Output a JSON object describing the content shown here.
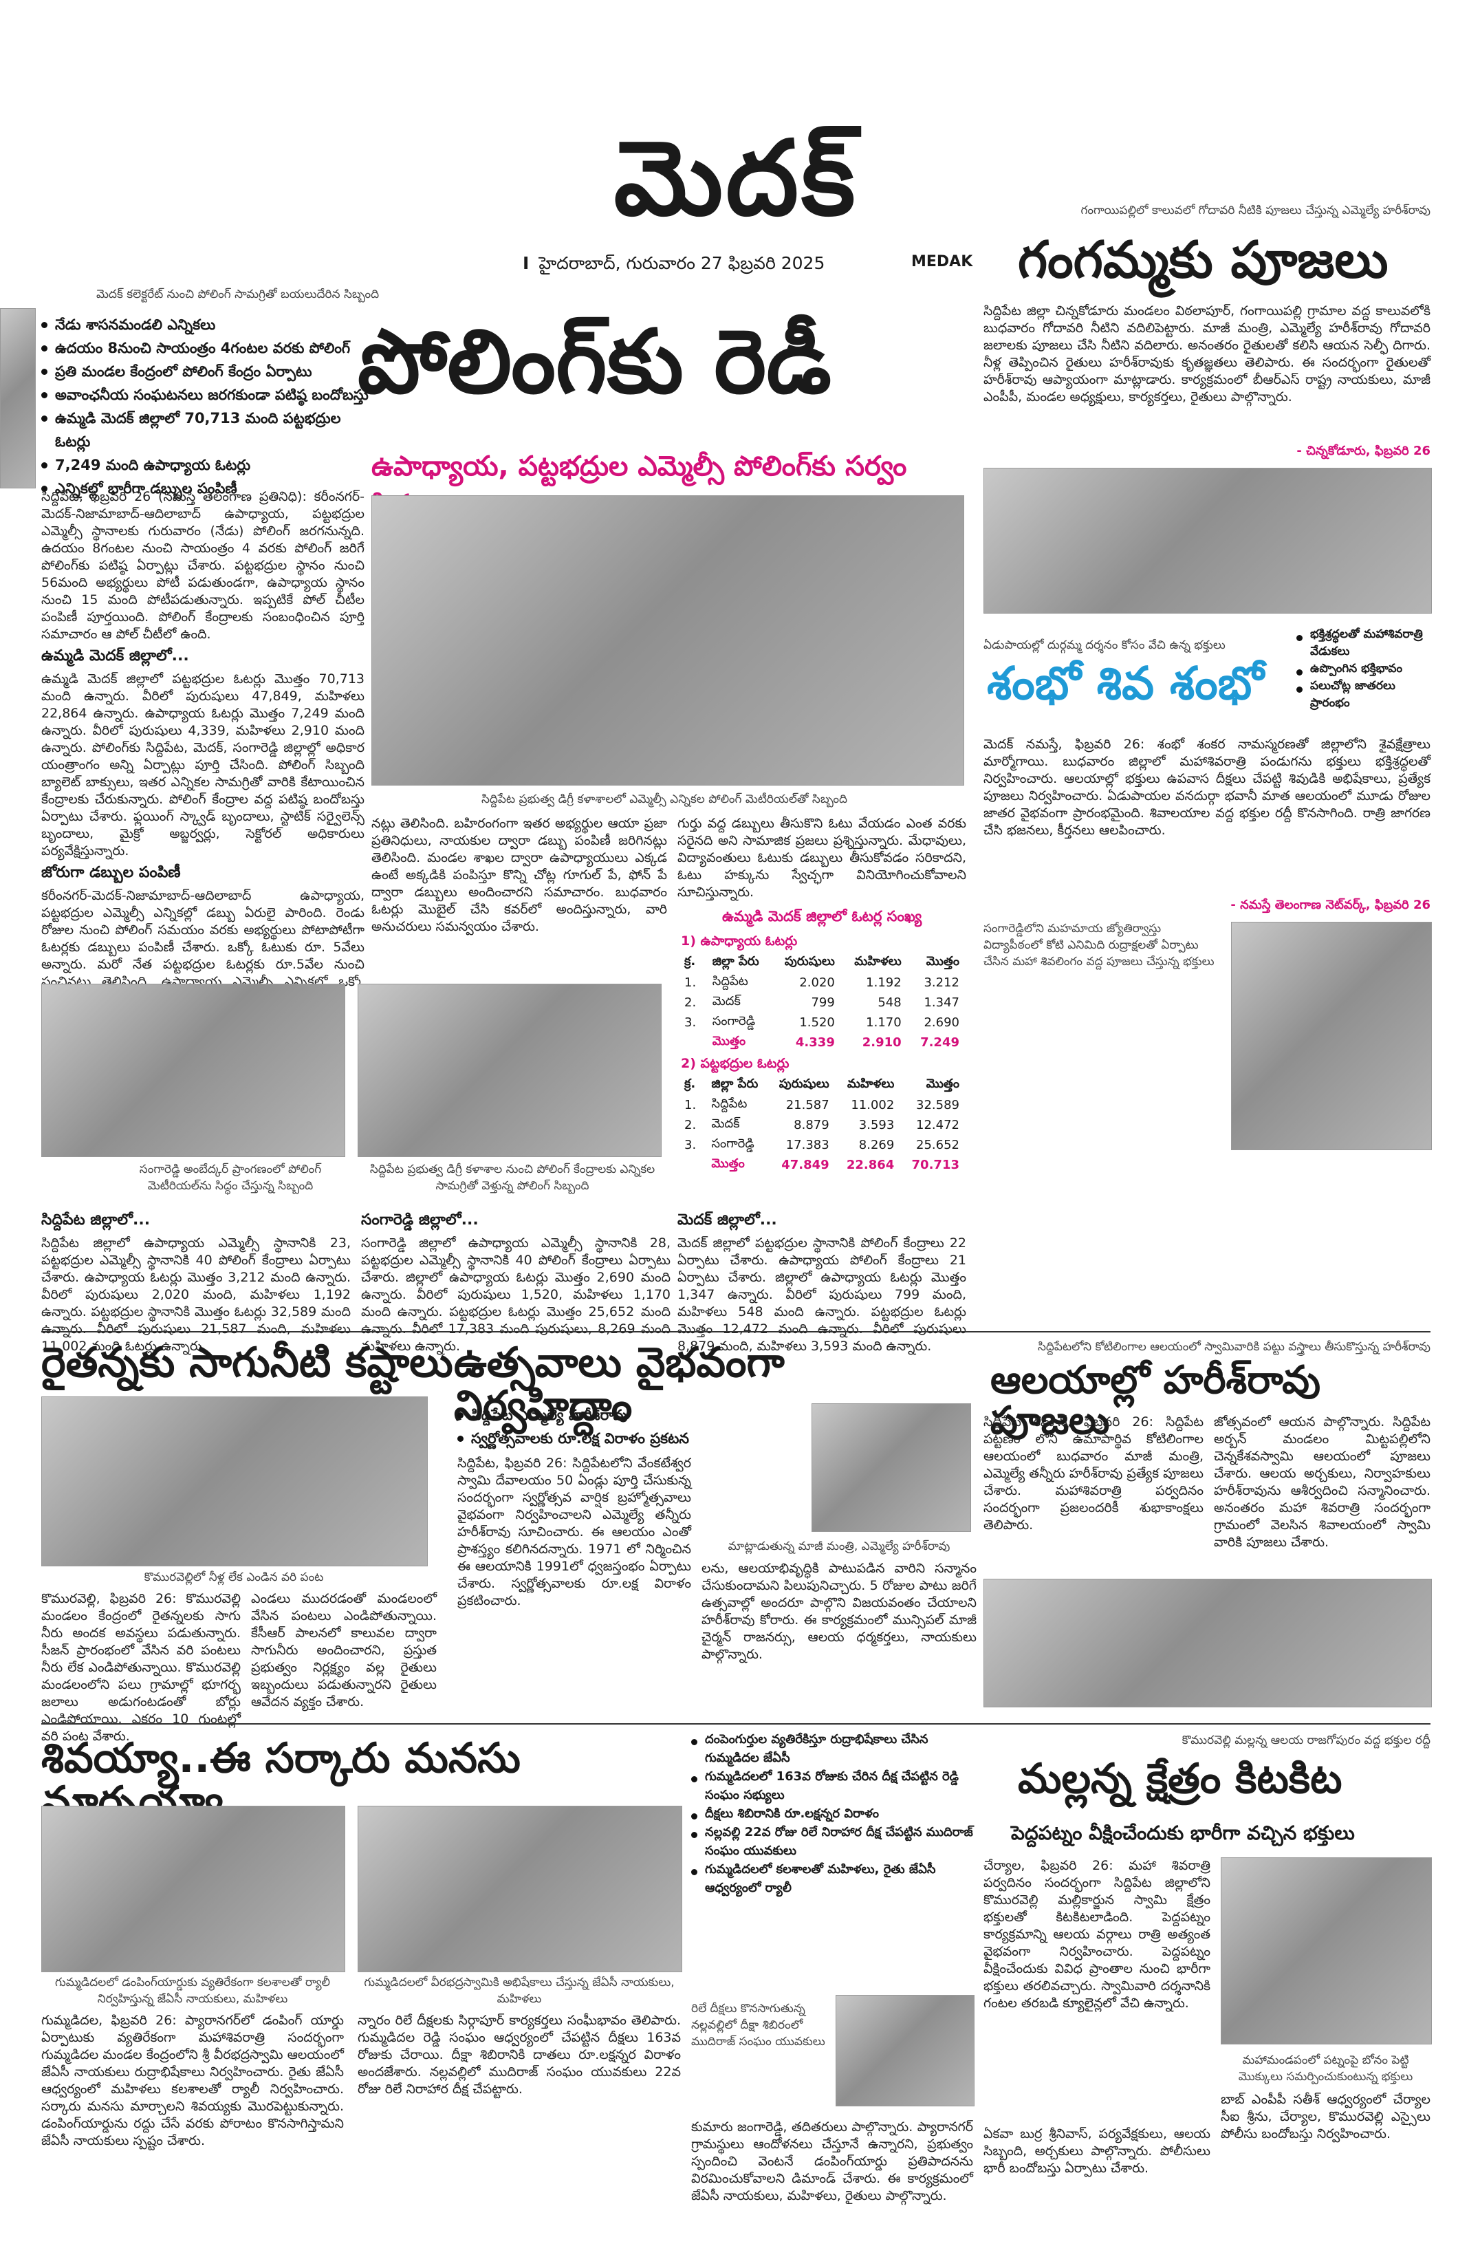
{
  "masthead": {
    "title": "మెదక్",
    "separator": "I",
    "dateline": "హైదరాబాద్, గురువారం 27 ఫిబ్రవరి 2025",
    "edition": "MEDAK"
  },
  "polling": {
    "photo_caption": "మెదక్ కలెక్టరేట్ నుంచి పోలింగ్ సామగ్రితో బయలుదేరిన సిబ్బంది",
    "bullets": [
      "నేడు శాసనమండలి ఎన్నికలు",
      "ఉదయం 8నుంచి సాయంత్రం 4గంటల వరకు పోలింగ్",
      "ప్రతి మండల కేంద్రంలో పోలింగ్ కేంద్రం ఏర్పాటు",
      "అవాంఛనీయ సంఘటనలు జరగకుండా పటిష్ఠ బందోబస్తు",
      "ఉమ్మడి మెదక్ జిల్లాలో 70,713 మంది పట్టభద్రుల ఓటర్లు",
      "7,249 మంది ఉపాధ్యాయ ఓటర్లు",
      "ఎన్నికల్లో భారీగా డబ్బుల పంపిణీ"
    ],
    "headline": "పోలింగ్‌కు రెడీ",
    "subhead": "ఉపాధ్యాయ, పట్టభద్రుల ఎమ్మెల్సీ పోలింగ్‌కు సర్వం సిద్ధం",
    "intro": "సిద్దిపేట, ఫిబ్రవరి 26 (నమస్తే తెలంగాణ ప్రతినిధి): కరీంనగర్-మెదక్-నిజామాబాద్-ఆదిలాబాద్ ఉపాధ్యాయ, పట్టభద్రుల ఎమ్మెల్సీ స్థానాలకు గురువారం (నేడు) పోలింగ్ జరగనున్నది. ఉదయం 8గంటల నుంచి సాయంత్రం 4 వరకు పోలింగ్ జరిగే పోలింగ్‌కు పటిష్ఠ ఏర్పాట్లు చేశారు. పట్టభద్రుల స్థానం నుంచి 56మంది అభ్యర్థులు పోటీ పడుతుండగా, ఉపాధ్యాయ స్థానం నుంచి 15 మంది పోటీపడుతున్నారు. ఇప్పటికే పోల్ చీటీల పంపిణీ పూర్తయింది. పోలింగ్ కేంద్రాలకు సంబంధించిన పూర్తి సమాచారం ఆ పోల్ చీటీలో ఉంది.",
    "section1_title": "ఉమ్మడి మెదక్ జిల్లాలో...",
    "section1_body": "ఉమ్మడి మెదక్ జిల్లాలో పట్టభద్రుల ఓటర్లు మొత్తం 70,713 మంది ఉన్నారు. వీరిలో పురుషులు 47,849, మహిళలు 22,864 ఉన్నారు. ఉపాధ్యాయ ఓటర్లు మొత్తం 7,249 మంది ఉన్నారు. వీరిలో పురుషులు 4,339, మహిళలు 2,910 మంది ఉన్నారు. పోలింగ్‌కు సిద్దిపేట, మెదక్, సంగారెడ్డి జిల్లాల్లో అధికార యంత్రాంగం అన్ని ఏర్పాట్లు పూర్తి చేసింది. పోలింగ్ సిబ్బంది బ్యాలెట్ బాక్సులు, ఇతర ఎన్నికల సామగ్రితో వారికి కేటాయించిన కేంద్రాలకు చేరుకున్నారు. పోలింగ్ కేంద్రాల వద్ద పటిష్ఠ బందోబస్తు ఏర్పాటు చేశారు. ఫ్లయింగ్ స్క్వాడ్ బృందాలు, స్టాటిక్ సర్వైలెన్స్ బృందాలు, మైక్రో అబ్జర్వర్లు, సెక్టోరల్ అధికారులు పర్యవేక్షిస్తున్నారు.",
    "section2_title": "జోరుగా డబ్బుల పంపిణీ",
    "section2_body": "కరీంనగర్-మెదక్-నిజామాబాద్-ఆదిలాబాద్ ఉపాధ్యాయ, పట్టభద్రుల ఎమ్మెల్సీ ఎన్నికల్లో డబ్బు ఏరులై పారింది. రెండు రోజుల నుంచి పోలింగ్ సమయం వరకు అభ్యర్థులు పోటాపోటీగా ఓటర్లకు డబ్బులు పంపిణీ చేశారు. ఒక్కో ఓటుకు రూ. 5వేలు అన్నారు. మరో నేత పట్టభద్రుల ఓటర్లకు రూ.5వేల నుంచి పంచినట్లు తెలిసింది. ఉపాధ్యాయ ఎమ్మెల్సీ ఎన్నికల్లో ఒక్కో ఓటుకు 8వేల వరకు పంపిణీ చేసినట్లు సమాచారం.",
    "center_caption": "సిద్దిపేట ప్రభుత్వ డిగ్రీ కళాశాలలో ఎమ్మెల్సీ ఎన్నికల పోలింగ్ మెటీరియల్‌తో సిబ్బంది",
    "center_body": "నట్లు తెలిసింది. బహిరంగంగా ఇతర అభ్యర్థుల ఆయా ప్రజా ప్రతినిధులు, నాయకుల ద్వారా డబ్బు పంపిణీ జరిగినట్లు తెలిసింది. మండల శాఖల ద్వారా ఉపాధ్యాయులు ఎక్కడ ఉంటే అక్కడికి పంపిస్తూ కొన్ని చోట్ల గూగుల్ పే, ఫోన్ పే ద్వారా డబ్బులు అందించారని సమాచారం. బుధవారం ఓటర్లు మొబైల్ చేసి కవర్‌లో అందిస్తున్నారు, వారి అనుచరులు సమన్వయం చేశారు.",
    "right_body": "గుర్తు వద్ద డబ్బులు తీసుకొని ఓటు వేయడం ఎంత వరకు సరైనది అని సామాజిక ప్రజలు ప్రశ్నిస్తున్నారు. మేధావులు, విద్యావంతులు ఓటుకు డబ్బులు తీసుకోవడం సరికాదని, ఓటు హక్కును స్వేచ్ఛగా వినియోగించుకోవాలని సూచిస్తున్నారు.",
    "table_title": "ఉమ్మడి మెదక్ జిల్లాలో ఓటర్ల సంఖ్య",
    "table1_title": "1) ఉపాధ్యాయ ఓటర్లు",
    "table2_title": "2) పట్టభద్రుల ఓటర్లు",
    "table_header": [
      "క్ర.",
      "జిల్లా పేరు",
      "పురుషులు",
      "మహిళలు",
      "మొత్తం"
    ],
    "table1_rows": [
      [
        "1.",
        "సిద్దిపేట",
        "2.020",
        "1.192",
        "3.212"
      ],
      [
        "2.",
        "మెదక్",
        "799",
        "548",
        "1.347"
      ],
      [
        "3.",
        "సంగారెడ్డి",
        "1.520",
        "1.170",
        "2.690"
      ]
    ],
    "table1_total": [
      "",
      "మొత్తం",
      "4.339",
      "2.910",
      "7.249"
    ],
    "table2_rows": [
      [
        "1.",
        "సిద్దిపేట",
        "21.587",
        "11.002",
        "32.589"
      ],
      [
        "2.",
        "మెదక్",
        "8.879",
        "3.593",
        "12.472"
      ],
      [
        "3.",
        "సంగారెడ్డి",
        "17.383",
        "8.269",
        "25.652"
      ]
    ],
    "table2_total": [
      "",
      "మొత్తం",
      "47.849",
      "22.864",
      "70.713"
    ],
    "photo2_caption": "సంగారెడ్డి అంబేద్కర్ ప్రాంగణంలో పోలింగ్ మెటీరియల్‌ను సిద్ధం చేస్తున్న సిబ్బంది",
    "photo3_caption": "సిద్దిపేట ప్రభుత్వ డిగ్రీ కళాశాల నుంచి పోలింగ్ కేంద్రాలకు ఎన్నికల సామగ్రితో వెళ్తున్న పోలింగ్ సిబ్బంది",
    "col_a_title": "సిద్దిపేట జిల్లాలో...",
    "col_a_body": "సిద్దిపేట జిల్లాలో ఉపాధ్యాయ ఎమ్మెల్సీ స్థానానికి 23, పట్టభద్రుల ఎమ్మెల్సీ స్థానానికి 40 పోలింగ్ కేంద్రాలు ఏర్పాటు చేశారు. ఉపాధ్యాయ ఓటర్లు మొత్తం 3,212 మంది ఉన్నారు. వీరిలో పురుషులు 2,020 మంది, మహిళలు 1,192 ఉన్నారు. పట్టభద్రుల స్థానానికి మొత్తం ఓటర్లు 32,589 మంది ఉన్నారు. వీరిలో పురుషులు 21,587 మంది, మహిళలు 11,002 మంది ఓటర్లు ఉన్నారు.",
    "col_b_title": "సంగారెడ్డి జిల్లాలో...",
    "col_b_body": "సంగారెడ్డి జిల్లాలో ఉపాధ్యాయ ఎమ్మెల్సీ స్థానానికి 28, పట్టభద్రుల ఎమ్మెల్సీ స్థానానికి 40 పోలింగ్ కేంద్రాలు ఏర్పాటు చేశారు. జిల్లాలో ఉపాధ్యాయ ఓటర్లు మొత్తం 2,690 మంది ఉన్నారు. వీరిలో పురుషులు 1,520, మహిళలు 1,170 మంది ఉన్నారు. పట్టభద్రుల ఓటర్లు మొత్తం 25,652 మంది ఉన్నారు. వీరిలో 17,383 మంది పురుషులు, 8,269 మంది మహిళలు ఉన్నారు.",
    "col_c_title": "మెదక్ జిల్లాలో...",
    "col_c_body": "మెదక్ జిల్లాలో పట్టభద్రుల స్థానానికి పోలింగ్ కేంద్రాలు 22 ఏర్పాటు చేశారు. ఉపాధ్యాయ పోలింగ్ కేంద్రాలు 21 ఏర్పాటు చేశారు. జిల్లాలో ఉపాధ్యాయ ఓటర్లు మొత్తం 1,347 ఉన్నారు. వీరిలో పురుషులు 799 మంది, మహిళలు 548 మంది ఉన్నారు. పట్టభద్రుల ఓటర్లు మొత్తం 12,472 మంది ఉన్నారు. వీరిలో పురుషులు 8,879 మంది, మహిళలు 3,593 మంది ఉన్నారు."
  },
  "gangamma": {
    "caption": "గంగాయిపల్లిలో కాలువలో గోదావరి నీటికి పూజలు చేస్తున్న ఎమ్మెల్యే హరీశ్‌రావు",
    "headline": "గంగమ్మకు పూజలు",
    "body": "సిద్దిపేట జిల్లా చిన్నకోడూరు మండలం విఠలాపూర్, గంగాయిపల్లి గ్రామాల వద్ద కాలువలోకి బుధవారం గోదావరి నీటిని వదిలిపెట్టారు. మాజీ మంత్రి, ఎమ్మెల్యే హరీశ్‌రావు గోదావరి జలాలకు పూజలు చేసి నీటిని వదిలారు. అనంతరం రైతులతో కలిసి ఆయన సెల్ఫీ దిగారు. నీళ్ల తెప్పించిన రైతులు హరీశ్‌రావుకు కృతజ్ఞతలు తెలిపారు. ఈ సందర్భంగా రైతులతో హరీశ్‌రావు ఆప్యాయంగా మాట్లాడారు. కార్యక్రమంలో బీఆర్ఎస్ రాష్ట్ర నాయకులు, మాజీ ఎంపీపీ, మండల అధ్యక్షులు, కార్యకర్తలు, రైతులు పాల్గొన్నారు.",
    "credit": "- చిన్నకోడూరు, ఫిబ్రవరి 26"
  },
  "shambho": {
    "caption": "ఏడుపాయల్లో దుర్గమ్మ దర్శనం కోసం వేచి ఉన్న భక్తులు",
    "headline": "శంభో శివ శంభో",
    "bullets": [
      "భక్తిశ్రద్ధలతో మహాశివరాత్రి వేడుకలు",
      "ఉప్పొంగిన భక్తిభావం",
      "పలుచోట్ల జాతరలు ప్రారంభం"
    ],
    "body": "మెదక్ నమస్తే, ఫిబ్రవరి 26: శంభో శంకర నామస్మరణతో జిల్లాలోని శైవక్షేత్రాలు మార్మోగాయి. బుధవారం జిల్లాలో మహాశివరాత్రి పండుగను భక్తులు భక్తిశ్రద్ధలతో నిర్వహించారు. ఆలయాల్లో భక్తులు ఉపవాస దీక్షలు చేపట్టి శివుడికి అభిషేకాలు, ప్రత్యేక పూజలు నిర్వహించారు. ఏడుపాయల వనదుర్గా భవానీ మాత ఆలయంలో మూడు రోజుల జాతర వైభవంగా ప్రారంభమైంది. శివాలయాల వద్ద భక్తుల రద్దీ కొనసాగింది. రాత్రి జాగరణ చేసి భజనలు, కీర్తనలు ఆలపించారు.",
    "credit": "- నమస్తే తెలంగాణ నెట్‌వర్క్, ఫిబ్రవరి 26",
    "photo2_caption": "సంగారెడ్డిలోని మహమాయ జ్యోతిర్వాస్తు విద్యాపీఠంలో కోటి ఎనిమిది రుద్రాక్షలతో ఏర్పాటు చేసిన మహా శివలింగం వద్ద పూజలు చేస్తున్న భక్తులు"
  },
  "raitanna": {
    "headline": "రైతన్నకు సాగునీటి కష్టాలు",
    "caption": "కొమురవెల్లిలో నీళ్ల లేక ఎండిన వరి పంట",
    "body1": "కొమురవెల్లి, ఫిబ్రవరి 26: కొమురవెల్లి మండలం కేంద్రంలో రైతన్నలకు సాగు నీరు అందక అవస్థలు పడుతున్నారు. సీజన్ ప్రారంభంలో వేసిన వరి పంటలు నీరు లేక ఎండిపోతున్నాయి. కొమురవెల్లి మండలంలోని పలు గ్రామాల్లో భూగర్భ జలాలు అడుగంటడంతో బోర్లు ఎండిపోయాయి. ఎకరం 10 గుంటల్లో వరి పంట వేశారు.",
    "body2": "ఎండలు ముదరడంతో మండలంలో వేసిన పంటలు ఎండిపోతున్నాయి. కేసీఆర్ పాలనలో కాలువల ద్వారా సాగునీరు అందించారని, ప్రస్తుత ప్రభుత్వం నిర్లక్ష్యం వల్ల రైతులు ఇబ్బందులు పడుతున్నారని రైతులు ఆవేదన వ్యక్తం చేశారు."
  },
  "utsavalu": {
    "headline": "ఉత్సవాలు వైభవంగా నిర్వహిద్దాం",
    "bullets": [
      "సిద్దిపేట ఎమ్మెల్యే హరీశ్‌రావు",
      "స్వర్ణోత్సవాలకు రూ.లక్ష విరాళం ప్రకటన"
    ],
    "body": "సిద్దిపేట, ఫిబ్రవరి 26: సిద్దిపేటలోని వేంకటేశ్వర స్వామి దేవాలయం 50 ఏండ్లు పూర్తి చేసుకున్న సందర్భంగా స్వర్ణోత్సవ వార్షిక బ్రహ్మోత్సవాలు వైభవంగా నిర్వహించాలని ఎమ్మెల్యే తన్నీరు హరీశ్‌రావు సూచించారు. ఈ ఆలయం ఎంతో ప్రాశస్త్యం కలిగినదన్నారు. 1971 లో నిర్మించిన ఈ ఆలయానికి 1991లో ధ్వజస్తంభం ఏర్పాటు చేశారు. స్వర్ణోత్సవాలకు రూ.లక్ష విరాళం ప్రకటించారు.",
    "caption": "మాట్లాడుతున్న మాజీ మంత్రి, ఎమ్మెల్యే హరీశ్‌రావు",
    "body2": "లను, ఆలయాభివృద్ధికి పాటుపడిన వారిని సన్మానం చేసుకుందామని పిలుపునిచ్చారు. 5 రోజుల పాటు జరిగే ఉత్సవాల్లో అందరూ పాల్గొని విజయవంతం చేయాలని హరీశ్‌రావు కోరారు. ఈ కార్యక్రమంలో మున్సిపల్ మాజీ చైర్మన్ రాజనర్సు, ఆలయ ధర్మకర్తలు, నాయకులు పాల్గొన్నారు."
  },
  "alayalu": {
    "caption": "సిద్దిపేటలోని కోటిలింగాల ఆలయంలో స్వామివారికి పట్టు వస్త్రాలు తీసుకొస్తున్న హరీశ్‌రావు",
    "headline": "ఆలయాల్లో హరీశ్‌రావు పూజలు",
    "body1": "సిద్దిపేట కమాన్, ఫిబ్రవరి 26: సిద్దిపేట పట్టణం లోని ఉమాపార్థివ కోటిలింగాల ఆలయంలో బుధవారం మాజీ మంత్రి, ఎమ్మెల్యే తన్నీరు హరీశ్‌రావు ప్రత్యేక పూజలు చేశారు. మహాశివరాత్రి పర్వదినం సందర్భంగా ప్రజలందరికీ శుభాకాంక్షలు తెలిపారు.",
    "body2": "జోత్సవంలో ఆయన పాల్గొన్నారు. సిద్దిపేట అర్బన్ మండలం మిట్టపల్లిలోని చెన్నకేశవస్వామి ఆలయంలో పూజలు చేశారు. ఆలయ అర్చకులు, నిర్వాహకులు హరీశ్‌రావును ఆశీర్వదించి సన్మానించారు. అనంతరం మహా శివరాత్రి సందర్భంగా గ్రామంలో వెలసిన శివాలయంలో స్వామి వారికి పూజలు చేశారు."
  },
  "shivayya": {
    "headline": "శివయ్యా..ఈ సర్కారు మనసు మార్చయ్యా",
    "bullets": [
      "దంపెంగుర్తుల వ్యతిరేకిస్తూ రుద్రాభిషేకాలు చేసిన గుమ్మడిదల జేఏసీ",
      "గుమ్మడిదలలో 163వ రోజుకు చేరిన దీక్ష చేపట్టిన రెడ్డి సంఘం సభ్యులు",
      "దీక్షలు శిబిరానికి రూ.లక్షన్నర విరాళం",
      "నల్లవల్లి 22వ రోజు రిలే నిరాహార దీక్ష చేపట్టిన ముదిరాజ్ సంఘం యువకులు",
      "గుమ్మడిదలలో కలశాలతో మహిళలు, రైతు జేఏసీ ఆధ్వర్యంలో ర్యాలీ"
    ],
    "caption1": "గుమ్మడిదలలో డంపింగ్‌యార్డుకు వ్యతిరేకంగా కలశాలతో ర్యాలీ నిర్వహిస్తున్న జేఏసీ నాయకులు, మహిళలు",
    "caption2": "గుమ్మడిదలలో వీరభద్రస్వామికి అభిషేకాలు చేస్తున్న జేఏసీ నాయకులు, మహిళలు",
    "caption3": "రిలే దీక్షలు కొనసాగుతున్న నల్లవల్లిలో దీక్షా శిబిరంలో ముదిరాజ్ సంఘం యువకులు",
    "body1": "గుమ్మడిదల, ఫిబ్రవరి 26: ప్యారానగర్‌లో డంపింగ్ యార్డు ఏర్పాటుకు వ్యతిరేకంగా మహాశివరాత్రి సందర్భంగా గుమ్మడిదల మండల కేంద్రంలోని శ్రీ వీరభద్రస్వామి ఆలయంలో జేఏసీ నాయకులు రుద్రాభిషేకాలు నిర్వహించారు. రైతు జేఏసీ ఆధ్వర్యంలో మహిళలు కలశాలతో ర్యాలీ నిర్వహించారు. సర్కారు మనసు మార్చాలని శివయ్యకు మొరపెట్టుకున్నారు. డంపింగ్‌యార్డును రద్దు చేసే వరకు పోరాటం కొనసాగిస్తామని జేఏసీ నాయకులు స్పష్టం చేశారు.",
    "body2": "న్నారం రిలే దీక్షలకు సిర్గాపూర్ కార్యకర్తలు సంఘీభావం తెలిపారు. గుమ్మడిదల రెడ్డి సంఘం ఆధ్వర్యంలో చేపట్టిన దీక్షలు 163వ రోజుకు చేరాయి. దీక్షా శిబిరానికి దాతలు రూ.లక్షన్నర విరాళం అందజేశారు. నల్లవల్లిలో ముదిరాజ్ సంఘం యువకులు 22వ రోజు రిలే నిరాహార దీక్ష చేపట్టారు.",
    "body3": "కుమారు జంగారెడ్డి, తదితరులు పాల్గొన్నారు. ప్యారానగర్ గ్రామస్థులు ఆందోళనలు చేస్తూనే ఉన్నారని, ప్రభుత్వం స్పందించి వెంటనే డంపింగ్‌యార్డు ప్రతిపాదనను విరమించుకోవాలని డిమాండ్ చేశారు. ఈ కార్యక్రమంలో జేఏసీ నాయకులు, మహిళలు, రైతులు పాల్గొన్నారు."
  },
  "mallanna": {
    "caption": "కొమురవెల్లి మల్లన్న ఆలయ రాజగోపురం వద్ద భక్తుల రద్దీ",
    "headline": "మల్లన్న క్షేత్రం కిటకిట",
    "subhead": "పెద్దపట్నం వీక్షించేందుకు భారీగా వచ్చిన భక్తులు",
    "body": "చేర్యాల, ఫిబ్రవరి 26: మహా శివరాత్రి పర్వదినం సందర్భంగా సిద్దిపేట జిల్లాలోని కొమురవెల్లి మల్లికార్జున స్వామి క్షేత్రం భక్తులతో కిటకిటలాడింది. పెద్దపట్నం కార్యక్రమాన్ని ఆలయ వర్గాలు రాత్రి అత్యంత వైభవంగా నిర్వహించారు. పెద్దపట్నం వీక్షించేందుకు వివిధ ప్రాంతాల నుంచి భారీగా భక్తులు తరలివచ్చారు. స్వామివారి దర్శనానికి గంటల తరబడి క్యూలైన్లలో వేచి ఉన్నారు.",
    "body2": "ఏకవా బుర్ర శ్రీనివాస్, పర్యవేక్షకులు, ఆలయ సిబ్బంది, అర్చకులు పాల్గొన్నారు. పోలీసులు భారీ బందోబస్తు ఏర్పాటు చేశారు.",
    "caption2": "మహామండపంలో పట్నంపై బోనం పెట్టి మొక్కులు సమర్పించుకుంటున్న భక్తులు",
    "body3": "బాబ్ ఎంపీపీ సతీశ్ ఆధ్వర్యంలో చేర్యాల సీఐ శ్రీను, చేర్యాల, కొమురవెల్లి ఎస్సైలు పోలీసు బందోబస్తు నిర్వహించారు."
  }
}
